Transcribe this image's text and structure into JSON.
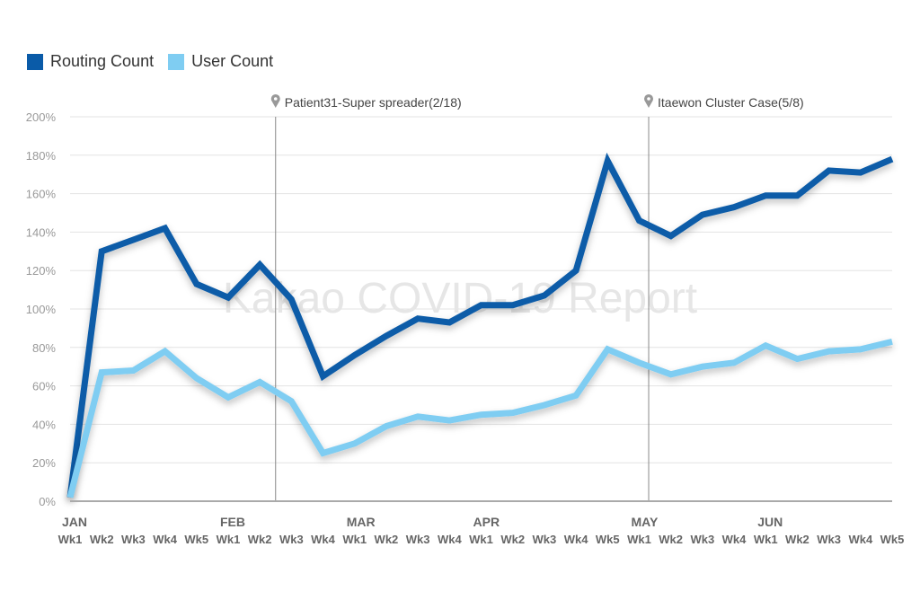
{
  "chart_data": {
    "type": "line",
    "watermark": "Kakao COVID-19 Report",
    "ylim": [
      0,
      200
    ],
    "y_ticks": [
      "0%",
      "20%",
      "40%",
      "60%",
      "80%",
      "100%",
      "120%",
      "140%",
      "160%",
      "180%",
      "200%"
    ],
    "y_tick_values": [
      0,
      20,
      40,
      60,
      80,
      100,
      120,
      140,
      160,
      180,
      200
    ],
    "months": [
      {
        "label": "JAN",
        "index": 0
      },
      {
        "label": "FEB",
        "index": 5
      },
      {
        "label": "MAR",
        "index": 9
      },
      {
        "label": "APR",
        "index": 13
      },
      {
        "label": "MAY",
        "index": 18
      },
      {
        "label": "JUN",
        "index": 22
      }
    ],
    "categories": [
      "Wk1",
      "Wk2",
      "Wk3",
      "Wk4",
      "Wk5",
      "Wk1",
      "Wk2",
      "Wk3",
      "Wk4",
      "Wk1",
      "Wk2",
      "Wk3",
      "Wk4",
      "Wk1",
      "Wk2",
      "Wk3",
      "Wk4",
      "Wk5",
      "Wk1",
      "Wk2",
      "Wk3",
      "Wk4",
      "Wk1",
      "Wk2",
      "Wk3",
      "Wk4",
      "Wk5"
    ],
    "series": [
      {
        "name": "Routing Count",
        "color": "#0a5ba8",
        "values": [
          2,
          130,
          136,
          142,
          113,
          106,
          123,
          105,
          65,
          76,
          86,
          95,
          93,
          102,
          102,
          107,
          120,
          177,
          146,
          138,
          149,
          153,
          159,
          159,
          172,
          171,
          178
        ]
      },
      {
        "name": "User Count",
        "color": "#7fcdf2",
        "values": [
          2,
          67,
          68,
          78,
          64,
          54,
          62,
          52,
          25,
          30,
          39,
          44,
          42,
          45,
          46,
          50,
          55,
          79,
          72,
          66,
          70,
          72,
          81,
          74,
          78,
          79,
          83
        ]
      }
    ],
    "annotations": [
      {
        "label": "Patient31-Super spreader(2/18)",
        "x_index": 6.5
      },
      {
        "label": "Itaewon Cluster Case(5/8)",
        "x_index": 18.3
      }
    ]
  }
}
